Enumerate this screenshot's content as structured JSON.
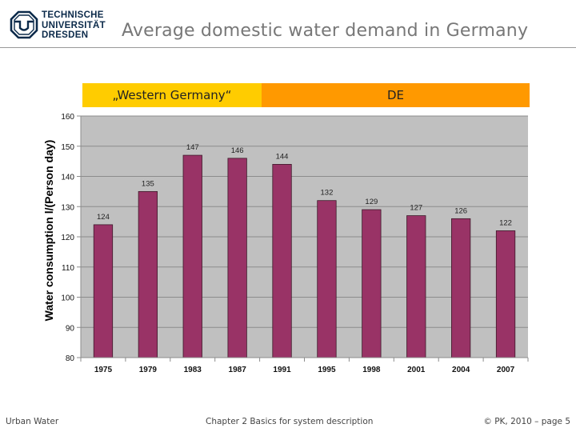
{
  "header": {
    "logo_lines": [
      "TECHNISCHE",
      "UNIVERSITÄT",
      "DRESDEN"
    ],
    "title": "Average domestic water demand in Germany"
  },
  "bands": {
    "western": "„Western Germany“",
    "de": "DE",
    "western_color": "#ffcc00",
    "de_color": "#ff9900"
  },
  "footer": {
    "left": "Urban Water",
    "center": "Chapter 2  Basics for system description",
    "right": "© PK, 2010 – page 5"
  },
  "chart_data": {
    "type": "bar",
    "title": "",
    "xlabel": "",
    "ylabel": "Water consumption  l/(Person day)",
    "categories": [
      "1975",
      "1979",
      "1983",
      "1987",
      "1991",
      "1995",
      "1998",
      "2001",
      "2004",
      "2007"
    ],
    "values": [
      124,
      135,
      147,
      146,
      144,
      132,
      129,
      127,
      126,
      122
    ],
    "data_labels": [
      "124",
      "135",
      "147",
      "146",
      "144",
      "132",
      "129",
      "127",
      "126",
      "122"
    ],
    "ylim": [
      80,
      160
    ],
    "yticks": [
      80,
      90,
      100,
      110,
      120,
      130,
      140,
      150,
      160
    ],
    "grid": true,
    "bar_color": "#993366",
    "plot_background": "#c0c0c0",
    "legend": "none"
  }
}
